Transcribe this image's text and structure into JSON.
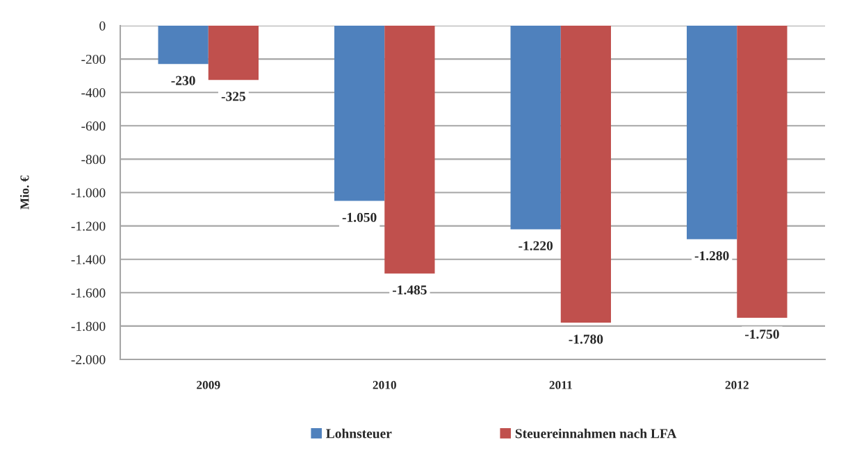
{
  "chart_data": {
    "type": "bar",
    "ylabel": "Mio. €",
    "categories": [
      "2009",
      "2010",
      "2011",
      "2012"
    ],
    "series": [
      {
        "name": "Lohnsteuer",
        "color": "#4f81bd",
        "values": [
          -230,
          -1050,
          -1220,
          -1280
        ],
        "value_labels": [
          "-230",
          "-1.050",
          "-1.220",
          "-1.280"
        ]
      },
      {
        "name": "Steuereinnahmen nach LFA",
        "color": "#c0504d",
        "values": [
          -325,
          -1485,
          -1780,
          -1750
        ],
        "value_labels": [
          "-325",
          "-1.485",
          "-1.780",
          "-1.750"
        ]
      }
    ],
    "ylim": [
      -2000,
      0
    ],
    "yticks": [
      0,
      -200,
      -400,
      -600,
      -800,
      {
        "value": -1000,
        "label": "-1.000"
      },
      {
        "value": -1200,
        "label": "-1.200"
      },
      {
        "value": -1400,
        "label": "-1.400"
      },
      {
        "value": -1600,
        "label": "-1.600"
      },
      {
        "value": -1800,
        "label": "-1.800"
      },
      {
        "value": -2000,
        "label": "-2.000"
      }
    ],
    "grid": "y",
    "legend": "bottom"
  }
}
